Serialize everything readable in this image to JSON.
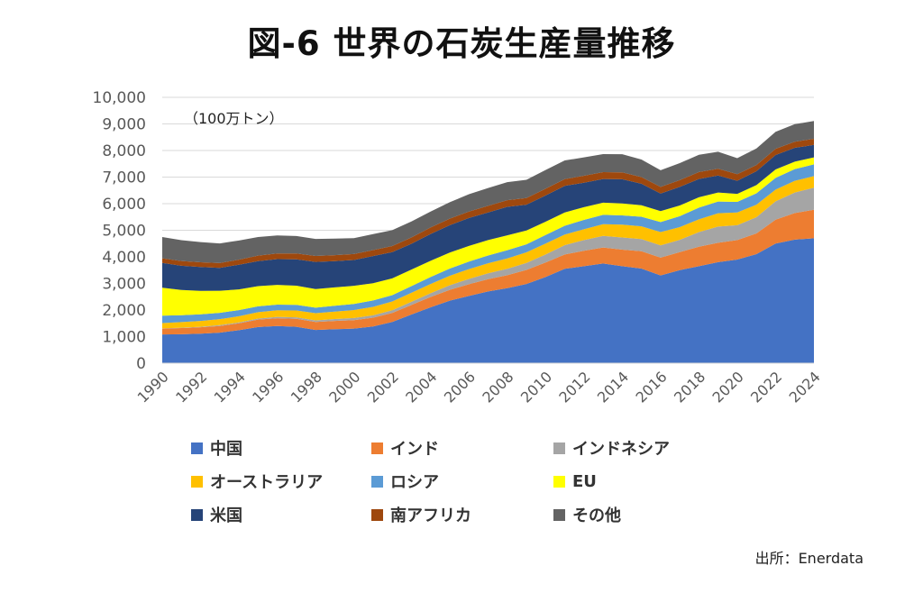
{
  "chart_data": {
    "type": "area",
    "stacked": true,
    "title": "図-6 世界の石炭生産量推移",
    "unit_label": "（100万トン）",
    "source": "出所：Enerdata",
    "ylim": [
      0,
      10000
    ],
    "y_ticks": [
      "0",
      "1,000",
      "2,000",
      "3,000",
      "4,000",
      "5,000",
      "6,000",
      "7,000",
      "8,000",
      "9,000",
      "10,000"
    ],
    "x": [
      1990,
      1991,
      1992,
      1993,
      1994,
      1995,
      1996,
      1997,
      1998,
      1999,
      2000,
      2001,
      2002,
      2003,
      2004,
      2005,
      2006,
      2007,
      2008,
      2009,
      2010,
      2011,
      2012,
      2013,
      2014,
      2015,
      2016,
      2017,
      2018,
      2019,
      2020,
      2021,
      2022,
      2023,
      2024
    ],
    "x_ticks": [
      "1990",
      "1992",
      "1994",
      "1996",
      "1998",
      "2000",
      "2002",
      "2004",
      "2006",
      "2008",
      "2010",
      "2012",
      "2014",
      "2016",
      "2018",
      "2020",
      "2022",
      "2024"
    ],
    "grid": true,
    "legend_position": "bottom",
    "series": [
      {
        "name": "中国",
        "color": "#4472C4",
        "values": [
          1080,
          1090,
          1110,
          1150,
          1240,
          1360,
          1400,
          1370,
          1250,
          1280,
          1300,
          1380,
          1550,
          1830,
          2100,
          2350,
          2530,
          2700,
          2820,
          2980,
          3240,
          3550,
          3650,
          3750,
          3650,
          3560,
          3300,
          3500,
          3650,
          3800,
          3900,
          4100,
          4500,
          4650,
          4700
        ]
      },
      {
        "name": "インド",
        "color": "#ED7D31",
        "values": [
          220,
          230,
          240,
          250,
          260,
          280,
          290,
          300,
          300,
          310,
          320,
          330,
          340,
          360,
          390,
          410,
          440,
          460,
          490,
          530,
          550,
          540,
          580,
          600,
          620,
          650,
          670,
          680,
          730,
          730,
          730,
          780,
          900,
          1000,
          1070
        ]
      },
      {
        "name": "インドネシア",
        "color": "#A5A5A5",
        "values": [
          10,
          15,
          20,
          30,
          35,
          40,
          50,
          55,
          60,
          70,
          80,
          90,
          100,
          120,
          140,
          170,
          200,
          220,
          240,
          260,
          300,
          350,
          400,
          440,
          460,
          460,
          460,
          460,
          550,
          610,
          560,
          610,
          690,
          770,
          830
        ]
      },
      {
        "name": "オーストラリア",
        "color": "#FFC000",
        "values": [
          200,
          210,
          220,
          225,
          230,
          240,
          250,
          260,
          270,
          280,
          300,
          320,
          330,
          340,
          350,
          360,
          370,
          380,
          390,
          400,
          410,
          400,
          410,
          440,
          480,
          480,
          500,
          480,
          480,
          500,
          480,
          470,
          440,
          440,
          440
        ]
      },
      {
        "name": "ロシア",
        "color": "#5B9BD5",
        "values": [
          280,
          260,
          250,
          240,
          230,
          220,
          215,
          210,
          210,
          220,
          230,
          240,
          240,
          250,
          260,
          270,
          280,
          290,
          310,
          300,
          320,
          330,
          350,
          350,
          350,
          360,
          380,
          410,
          440,
          440,
          400,
          430,
          440,
          440,
          440
        ]
      },
      {
        "name": "EU",
        "color": "#FFFF00",
        "values": [
          1050,
          950,
          880,
          830,
          780,
          760,
          740,
          720,
          700,
          690,
          680,
          650,
          630,
          620,
          610,
          600,
          590,
          580,
          560,
          520,
          500,
          500,
          480,
          460,
          450,
          430,
          410,
          400,
          390,
          340,
          300,
          310,
          320,
          280,
          260
        ]
      },
      {
        "name": "米国",
        "color": "#264478",
        "values": [
          930,
          910,
          900,
          860,
          930,
          940,
          970,
          990,
          1020,
          990,
          970,
          1020,
          990,
          970,
          1010,
          1030,
          1050,
          1040,
          1070,
          970,
          990,
          1000,
          920,
          890,
          910,
          810,
          660,
          700,
          690,
          640,
          490,
          520,
          540,
          520,
          470
        ]
      },
      {
        "name": "南アフリカ",
        "color": "#9E480E",
        "values": [
          175,
          180,
          175,
          180,
          190,
          205,
          210,
          220,
          225,
          225,
          225,
          225,
          225,
          240,
          245,
          245,
          245,
          250,
          250,
          250,
          255,
          255,
          260,
          256,
          260,
          250,
          250,
          255,
          260,
          255,
          250,
          235,
          235,
          230,
          230
        ]
      },
      {
        "name": "その他",
        "color": "#636363",
        "values": [
          800,
          780,
          760,
          740,
          720,
          700,
          680,
          660,
          640,
          620,
          600,
          600,
          600,
          600,
          600,
          620,
          650,
          670,
          680,
          690,
          700,
          700,
          690,
          680,
          680,
          660,
          630,
          640,
          650,
          640,
          600,
          620,
          640,
          660,
          670
        ]
      }
    ]
  }
}
